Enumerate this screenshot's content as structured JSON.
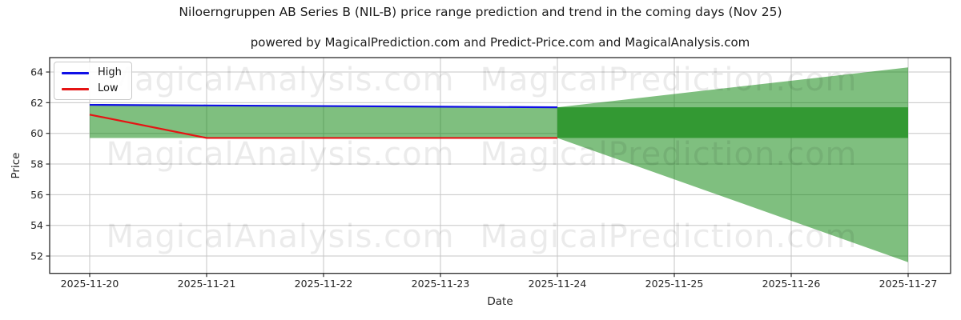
{
  "chart_data": {
    "type": "line",
    "title": "Niloerngruppen AB Series B (NIL-B) price range prediction and trend in the coming days (Nov 25)",
    "subtitle": "powered by MagicalPrediction.com and Predict-Price.com and MagicalAnalysis.com",
    "xlabel": "Date",
    "ylabel": "Price",
    "x_dates": [
      "2025-11-20",
      "2025-11-21",
      "2025-11-22",
      "2025-11-23",
      "2025-11-24",
      "2025-11-25",
      "2025-11-26",
      "2025-11-27"
    ],
    "yticks": [
      52,
      54,
      56,
      58,
      60,
      62,
      64
    ],
    "ylim": [
      50.87,
      64.94
    ],
    "grid": true,
    "legend": {
      "position": "upper-left",
      "entries": [
        {
          "label": "High",
          "color": "#0f0fe6"
        },
        {
          "label": "Low",
          "color": "#e51414"
        }
      ]
    },
    "series": [
      {
        "name": "High",
        "color": "#0f0fe6",
        "dates": [
          "2025-11-20",
          "2025-11-21",
          "2025-11-22",
          "2025-11-23",
          "2025-11-24"
        ],
        "values": [
          61.86,
          61.82,
          61.78,
          61.74,
          61.7
        ]
      },
      {
        "name": "Low",
        "color": "#e51414",
        "dates": [
          "2025-11-20",
          "2025-11-21",
          "2025-11-22",
          "2025-11-23",
          "2025-11-24"
        ],
        "values": [
          61.22,
          59.7,
          59.7,
          59.7,
          59.7
        ]
      }
    ],
    "bands": {
      "history_range": {
        "from": "2025-11-20",
        "to": "2025-11-24",
        "top_follows": "High",
        "bottom": 59.7,
        "fill": "#008000",
        "opacity": 0.5
      },
      "forecast_wedge": {
        "from": "2025-11-24",
        "to": "2025-11-27",
        "top_start": 61.7,
        "top_end": 64.3,
        "bottom_start": 59.7,
        "bottom_end": 51.6,
        "fill": "#008000",
        "opacity": 0.5
      },
      "forecast_core": {
        "from": "2025-11-24",
        "to": "2025-11-27",
        "top": 61.7,
        "bottom": 59.7,
        "fill": "#339933"
      }
    },
    "colors": {
      "grid": "#c6c6c6",
      "spine": "#2b2b2b",
      "tick_text": "#242424",
      "high_line": "#0f0fe6",
      "low_line": "#e51414",
      "range_fill": "#008000",
      "core_fill": "#339933"
    },
    "watermarks": [
      "MagicalAnalysis.com",
      "MagicalPrediction.com"
    ]
  }
}
